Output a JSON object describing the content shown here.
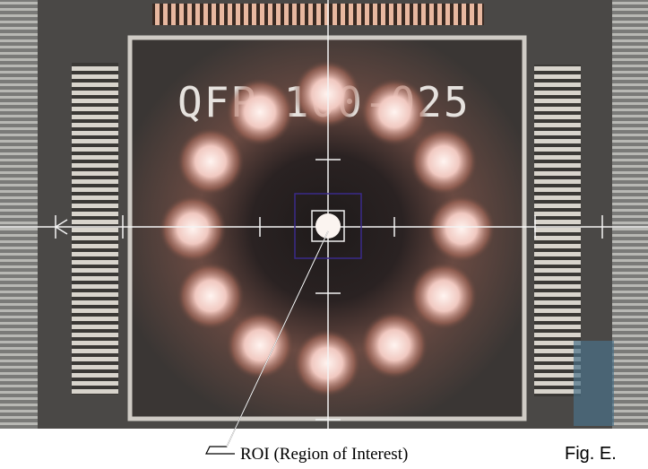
{
  "figure": {
    "chip_marking": "QFP 100-025",
    "roi_label": "ROI (Region of Interest)",
    "figure_label": "Fig. E."
  }
}
